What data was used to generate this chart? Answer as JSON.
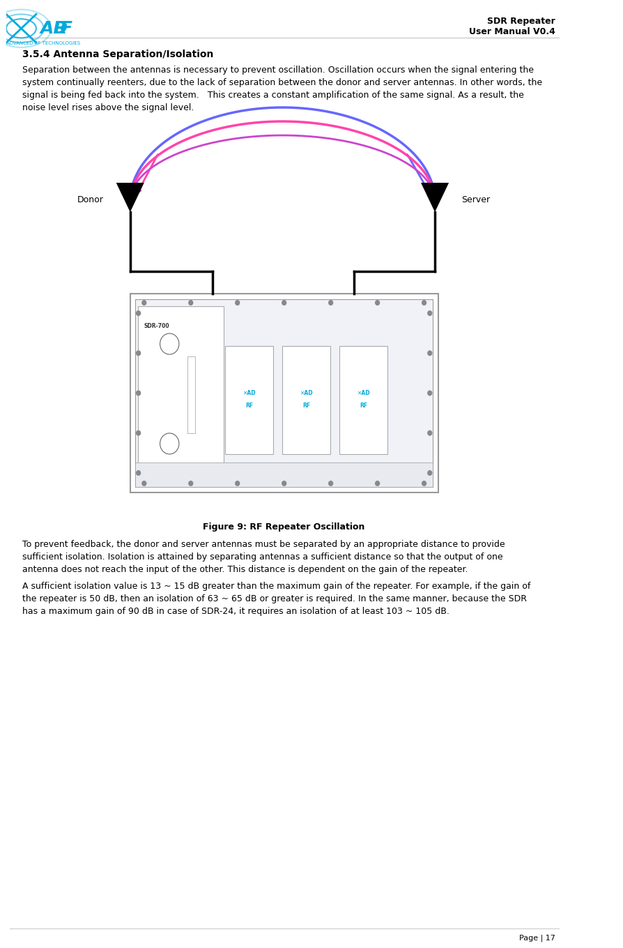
{
  "page_title_line1": "SDR Repeater",
  "page_title_line2": "User Manual V0.4",
  "section_title": "3.5.4 Antenna Separation/Isolation",
  "para1": "Separation between the antennas is necessary to prevent oscillation. Oscillation occurs when the signal entering the\nsystem continually reenters, due to the lack of separation between the donor and server antennas. In other words, the\nsignal is being fed back into the system.   This creates a constant amplification of the same signal. As a result, the\nnoise level rises above the signal level.",
  "figure_caption": "Figure 9: RF Repeater Oscillation",
  "para2": "To prevent feedback, the donor and server antennas must be separated by an appropriate distance to provide\nsufficient isolation. Isolation is attained by separating antennas a sufficient distance so that the output of one\nantenna does not reach the input of the other. This distance is dependent on the gain of the repeater.",
  "para3": "A sufficient isolation value is 13 ~ 15 dB greater than the maximum gain of the repeater. For example, if the gain of\nthe repeater is 50 dB, then an isolation of 63 ~ 65 dB or greater is required. In the same manner, because the SDR\nhas a maximum gain of 90 dB in case of SDR-24, it requires an isolation of at least 103 ~ 105 dB.",
  "page_number": "Page | 17",
  "bg_color": "#ffffff",
  "text_color": "#000000",
  "header_line_color": "#cccccc",
  "footer_line_color": "#cccccc",
  "logo_text": "ADRF",
  "logo_subtext": "ADVANCED RF TECHNOLOGIES",
  "donor_label": "Donor",
  "server_label": "Server",
  "arc_color1": "#6666ff",
  "arc_color2": "#ff44aa",
  "arc_color3": "#cc44cc",
  "arrow_color": "#000000",
  "box_color": "#e8e8f0",
  "box_border": "#999999"
}
